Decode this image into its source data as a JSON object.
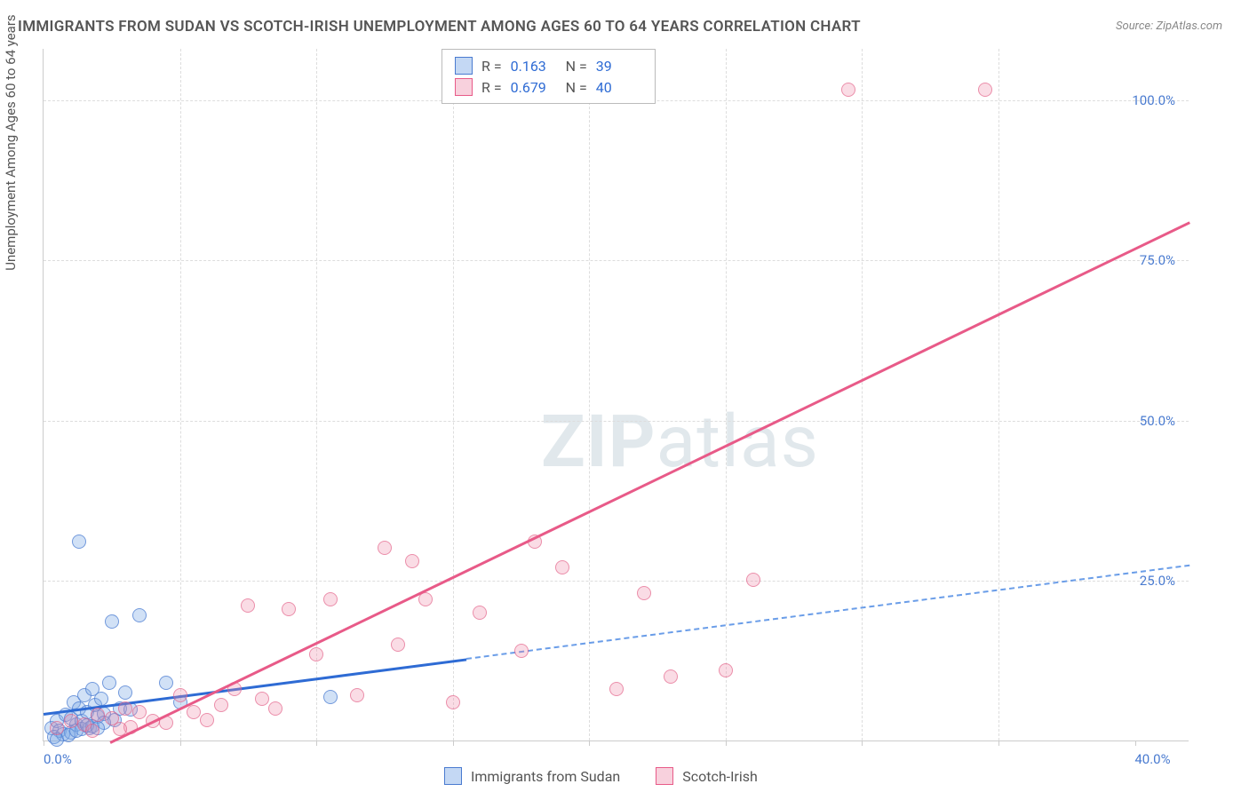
{
  "title": "IMMIGRANTS FROM SUDAN VS SCOTCH-IRISH UNEMPLOYMENT AMONG AGES 60 TO 64 YEARS CORRELATION CHART",
  "source_label": "Source:",
  "source_value": "ZipAtlas.com",
  "y_axis_label": "Unemployment Among Ages 60 to 64 years",
  "watermark_bold": "ZIP",
  "watermark_light": "atlas",
  "chart": {
    "type": "scatter",
    "xlim": [
      0,
      42
    ],
    "ylim": [
      0,
      108
    ],
    "x_ticks": [
      0,
      40
    ],
    "x_tick_labels": [
      "0.0%",
      "40.0%"
    ],
    "x_minor_ticks": [
      5,
      10,
      15,
      20,
      25,
      30,
      35
    ],
    "y_ticks": [
      25,
      50,
      75,
      100
    ],
    "y_tick_labels": [
      "25.0%",
      "50.0%",
      "75.0%",
      "100.0%"
    ],
    "background_color": "#ffffff",
    "grid_color": "#dddddd",
    "axis_color": "#cccccc",
    "text_color": "#555555",
    "tick_label_color": "#4a7bd0",
    "marker_radius": 8,
    "series": [
      {
        "id": "blue",
        "name": "Immigrants from Sudan",
        "color_fill": "rgba(124,169,230,0.35)",
        "color_stroke": "#4a7bd0",
        "r_value": "0.163",
        "n_value": "39",
        "trend": {
          "slope": 0.55,
          "intercept": 4.5,
          "x_solid_end": 15.5,
          "x_dash_end": 42,
          "line_width": 2.5,
          "color": "#2e6bd4",
          "dash_color": "#6a9de8"
        },
        "points": [
          [
            0.3,
            2
          ],
          [
            0.5,
            3
          ],
          [
            0.6,
            1.5
          ],
          [
            0.8,
            4
          ],
          [
            1.0,
            3.5
          ],
          [
            1.1,
            6
          ],
          [
            1.2,
            2.5
          ],
          [
            1.3,
            5
          ],
          [
            1.4,
            3
          ],
          [
            1.5,
            7
          ],
          [
            1.6,
            4.5
          ],
          [
            1.7,
            2
          ],
          [
            1.8,
            8
          ],
          [
            1.9,
            5.5
          ],
          [
            2.0,
            3.8
          ],
          [
            2.1,
            6.5
          ],
          [
            2.2,
            4.2
          ],
          [
            2.4,
            9
          ],
          [
            2.5,
            18.5
          ],
          [
            2.6,
            3.2
          ],
          [
            2.8,
            5
          ],
          [
            3.0,
            7.5
          ],
          [
            3.2,
            4.8
          ],
          [
            3.5,
            19.5
          ],
          [
            1.3,
            31
          ],
          [
            4.5,
            9
          ],
          [
            5.0,
            6
          ],
          [
            0.4,
            0.5
          ],
          [
            0.7,
            1
          ],
          [
            1.0,
            1.2
          ],
          [
            1.4,
            1.8
          ],
          [
            1.8,
            2.2
          ],
          [
            2.2,
            2.8
          ],
          [
            0.5,
            0.2
          ],
          [
            0.9,
            0.8
          ],
          [
            1.2,
            1.5
          ],
          [
            1.6,
            2.3
          ],
          [
            2.0,
            1.9
          ],
          [
            10.5,
            6.8
          ]
        ]
      },
      {
        "id": "pink",
        "name": "Scotch-Irish",
        "color_fill": "rgba(238,140,170,0.3)",
        "color_stroke": "#e85a88",
        "r_value": "0.679",
        "n_value": "40",
        "trend": {
          "slope": 2.05,
          "intercept": -5,
          "x_solid_end": 42,
          "line_width": 2.5,
          "color": "#e85a88"
        },
        "points": [
          [
            0.5,
            2
          ],
          [
            1.0,
            3
          ],
          [
            1.5,
            2.5
          ],
          [
            2.0,
            4
          ],
          [
            2.5,
            3.5
          ],
          [
            3.0,
            5
          ],
          [
            3.5,
            4.5
          ],
          [
            4.0,
            3
          ],
          [
            5.0,
            7
          ],
          [
            5.5,
            4.5
          ],
          [
            6.5,
            5.5
          ],
          [
            7.0,
            8
          ],
          [
            7.5,
            21
          ],
          [
            8.0,
            6.5
          ],
          [
            8.5,
            5
          ],
          [
            9.0,
            20.5
          ],
          [
            10.0,
            13.5
          ],
          [
            10.5,
            22
          ],
          [
            11.5,
            7
          ],
          [
            12.5,
            30
          ],
          [
            13.0,
            15
          ],
          [
            13.5,
            28
          ],
          [
            14.0,
            22
          ],
          [
            15.0,
            6
          ],
          [
            16.0,
            20
          ],
          [
            17.5,
            14
          ],
          [
            18.0,
            31
          ],
          [
            19.0,
            27
          ],
          [
            21.0,
            8
          ],
          [
            22.0,
            23
          ],
          [
            23.0,
            10
          ],
          [
            25.0,
            11
          ],
          [
            26.0,
            25
          ],
          [
            29.5,
            101.5
          ],
          [
            34.5,
            101.5
          ],
          [
            4.5,
            2.8
          ],
          [
            6.0,
            3.2
          ],
          [
            3.2,
            2.1
          ],
          [
            2.8,
            1.8
          ],
          [
            1.8,
            1.5
          ]
        ]
      }
    ]
  },
  "stats_header": {
    "r_label": "R  =",
    "n_label": "N  ="
  },
  "legend_items": [
    {
      "swatch": "blue",
      "label": "Immigrants from Sudan"
    },
    {
      "swatch": "pink",
      "label": "Scotch-Irish"
    }
  ]
}
